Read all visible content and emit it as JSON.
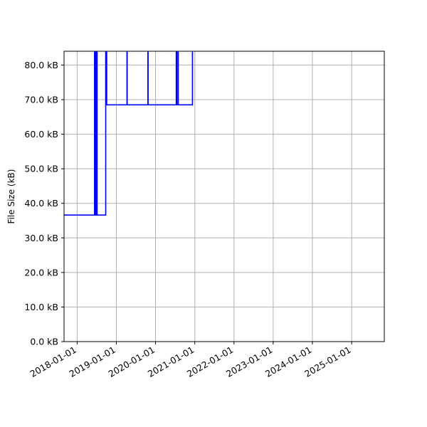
{
  "chart_data": {
    "type": "line",
    "title": "",
    "xlabel": "",
    "ylabel": "File Size (kB)",
    "grid": true,
    "line_color": "#0000ff",
    "x_range": [
      "2017-09-01",
      "2025-11-01"
    ],
    "y_range": [
      0,
      84
    ],
    "y_ticks": [
      {
        "value": 0,
        "label": "0.0 kB"
      },
      {
        "value": 10,
        "label": "10.0 kB"
      },
      {
        "value": 20,
        "label": "20.0 kB"
      },
      {
        "value": 30,
        "label": "30.0 kB"
      },
      {
        "value": 40,
        "label": "40.0 kB"
      },
      {
        "value": 50,
        "label": "50.0 kB"
      },
      {
        "value": 60,
        "label": "60.0 kB"
      },
      {
        "value": 70,
        "label": "70.0 kB"
      },
      {
        "value": 80,
        "label": "80.0 kB"
      }
    ],
    "x_ticks": [
      {
        "value": "2018-01-01",
        "label": "2018-01-01"
      },
      {
        "value": "2019-01-01",
        "label": "2019-01-01"
      },
      {
        "value": "2020-01-01",
        "label": "2020-01-01"
      },
      {
        "value": "2021-01-01",
        "label": "2021-01-01"
      },
      {
        "value": "2022-01-01",
        "label": "2022-01-01"
      },
      {
        "value": "2023-01-01",
        "label": "2023-01-01"
      },
      {
        "value": "2024-01-01",
        "label": "2024-01-01"
      },
      {
        "value": "2025-01-01",
        "label": "2025-01-01"
      }
    ],
    "series": [
      {
        "points": [
          {
            "x": "2017-09-01",
            "y": 36.6
          },
          {
            "x": "2018-06-12",
            "y": 36.6
          },
          {
            "x": "2018-06-12",
            "y": 84
          },
          {
            "x": "2018-06-18",
            "y": 84
          },
          {
            "x": "2018-06-18",
            "y": 36.6
          },
          {
            "x": "2018-06-24",
            "y": 36.6
          },
          {
            "x": "2018-06-24",
            "y": 84
          },
          {
            "x": "2018-06-28",
            "y": 84
          },
          {
            "x": "2018-06-28",
            "y": 36.6
          },
          {
            "x": "2018-07-02",
            "y": 36.6
          },
          {
            "x": "2018-07-02",
            "y": 84
          },
          {
            "x": "2018-07-06",
            "y": 84
          },
          {
            "x": "2018-07-06",
            "y": 36.6
          },
          {
            "x": "2018-09-24",
            "y": 36.6
          },
          {
            "x": "2018-09-24",
            "y": 84
          },
          {
            "x": "2018-10-03",
            "y": 84
          },
          {
            "x": "2018-10-03",
            "y": 68.5
          },
          {
            "x": "2019-04-10",
            "y": 68.5
          },
          {
            "x": "2019-04-10",
            "y": 84
          },
          {
            "x": "2019-04-12",
            "y": 84
          },
          {
            "x": "2019-04-12",
            "y": 68.5
          },
          {
            "x": "2019-10-22",
            "y": 68.5
          },
          {
            "x": "2019-10-22",
            "y": 84
          },
          {
            "x": "2019-10-24",
            "y": 84
          },
          {
            "x": "2019-10-24",
            "y": 68.5
          },
          {
            "x": "2020-07-12",
            "y": 68.5
          },
          {
            "x": "2020-07-12",
            "y": 84
          },
          {
            "x": "2020-07-16",
            "y": 84
          },
          {
            "x": "2020-07-16",
            "y": 68.5
          },
          {
            "x": "2020-07-28",
            "y": 68.5
          },
          {
            "x": "2020-07-28",
            "y": 84
          },
          {
            "x": "2020-07-31",
            "y": 84
          },
          {
            "x": "2020-07-31",
            "y": 68.5
          },
          {
            "x": "2020-12-10",
            "y": 68.5
          },
          {
            "x": "2020-12-10",
            "y": 84
          }
        ]
      }
    ]
  }
}
